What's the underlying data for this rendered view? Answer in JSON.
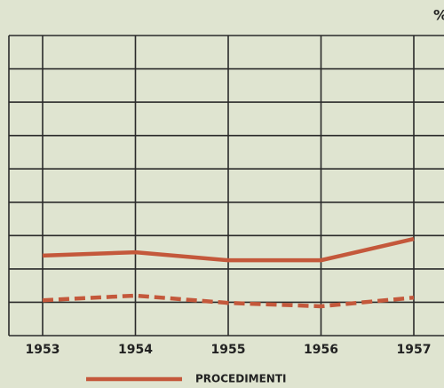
{
  "chart_data": {
    "type": "line",
    "y_label": "%",
    "categories": [
      "1953",
      "1954",
      "1955",
      "1956",
      "1957"
    ],
    "series": [
      {
        "name": "PROCEDIMENTI",
        "color": "#c4583b",
        "dashed": false,
        "values": [
          2.4,
          2.5,
          2.26,
          2.26,
          2.9
        ]
      },
      {
        "color": "#c4583b",
        "dashed": true,
        "values": [
          1.06,
          1.2,
          0.98,
          0.88,
          1.14
        ]
      }
    ],
    "ylim": [
      0,
      9
    ],
    "yticks": [
      0,
      1,
      2,
      3,
      4,
      5,
      6,
      7,
      8,
      9
    ],
    "grid": true
  }
}
